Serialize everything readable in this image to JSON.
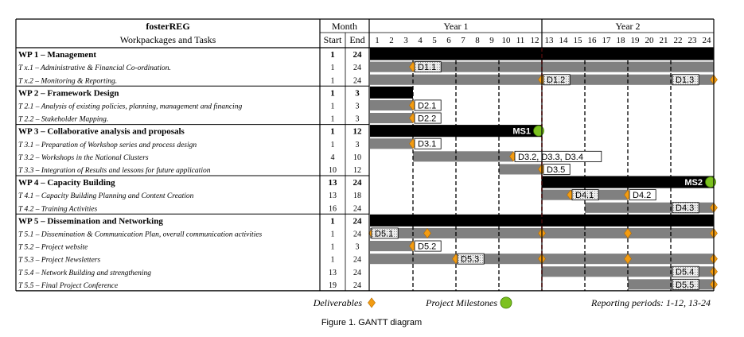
{
  "chart_data": {
    "type": "table",
    "header": {
      "project": "fosterREG",
      "subtitle": "Workpackages and Tasks",
      "month": "Month",
      "start": "Start",
      "end": "End",
      "year1": "Year 1",
      "year2": "Year 2",
      "months": [
        "1",
        "2",
        "3",
        "4",
        "5",
        "6",
        "7",
        "8",
        "9",
        "10",
        "11",
        "12",
        "13",
        "14",
        "15",
        "16",
        "17",
        "18",
        "19",
        "20",
        "21",
        "22",
        "23",
        "24"
      ]
    },
    "rows": [
      {
        "label": "WP 1 – Management",
        "start": "1",
        "end": "24",
        "wp": true
      },
      {
        "label": "T x.1 – Administrative & Financial Co-ordination.",
        "start": "1",
        "end": "24",
        "wp": false
      },
      {
        "label": "T x.2 – Monitoring & Reporting.",
        "start": "1",
        "end": "24",
        "wp": false
      },
      {
        "label": "WP 2 – Framework Design",
        "start": "1",
        "end": "3",
        "wp": true
      },
      {
        "label": "T 2.1 – Analysis of existing policies, planning, management and financing",
        "start": "1",
        "end": "3",
        "wp": false
      },
      {
        "label": "T 2.2 – Stakeholder Mapping.",
        "start": "1",
        "end": "3",
        "wp": false
      },
      {
        "label": "WP 3 – Collaborative analysis and proposals",
        "start": "1",
        "end": "12",
        "wp": true
      },
      {
        "label": "T 3.1 – Preparation of Workshop series and process design",
        "start": "1",
        "end": "3",
        "wp": false
      },
      {
        "label": "T 3.2 – Workshops in the National Clusters",
        "start": "4",
        "end": "10",
        "wp": false
      },
      {
        "label": "T 3.3 – Integration of Results and lessons for future application",
        "start": "10",
        "end": "12",
        "wp": false
      },
      {
        "label": "WP 4 – Capacity Building",
        "start": "13",
        "end": "24",
        "wp": true
      },
      {
        "label": "T 4.1 – Capacity Building Planning and Content Creation",
        "start": "13",
        "end": "18",
        "wp": false
      },
      {
        "label": "T 4.2 – Training Activities",
        "start": "16",
        "end": "24",
        "wp": false
      },
      {
        "label": "WP 5 – Dissemination and Networking",
        "start": "1",
        "end": "24",
        "wp": true
      },
      {
        "label": "T 5.1 – Dissemination & Communication Plan, overall communication activities",
        "start": "1",
        "end": "24",
        "wp": false
      },
      {
        "label": "T 5.2 – Project website",
        "start": "1",
        "end": "3",
        "wp": false
      },
      {
        "label": "T 5.3 – Project Newsletters",
        "start": "1",
        "end": "24",
        "wp": false
      },
      {
        "label": "T 5.4 – Network Building and strengthening",
        "start": "13",
        "end": "24",
        "wp": false
      },
      {
        "label": "T 5.5 – Final Project Conference",
        "start": "19",
        "end": "24",
        "wp": false
      }
    ],
    "bars": [
      {
        "row": 0,
        "from": 1,
        "to": 24,
        "fill": "black"
      },
      {
        "row": 1,
        "from": 1,
        "to": 24,
        "fill": "gray"
      },
      {
        "row": 2,
        "from": 1,
        "to": 24,
        "fill": "gray"
      },
      {
        "row": 3,
        "from": 1,
        "to": 3,
        "fill": "black"
      },
      {
        "row": 4,
        "from": 1,
        "to": 3,
        "fill": "gray"
      },
      {
        "row": 5,
        "from": 1,
        "to": 3,
        "fill": "gray"
      },
      {
        "row": 6,
        "from": 1,
        "to": 12,
        "fill": "black"
      },
      {
        "row": 7,
        "from": 1,
        "to": 3,
        "fill": "gray"
      },
      {
        "row": 8,
        "from": 4,
        "to": 10,
        "fill": "gray"
      },
      {
        "row": 9,
        "from": 10,
        "to": 12,
        "fill": "gray"
      },
      {
        "row": 10,
        "from": 13,
        "to": 24,
        "fill": "black"
      },
      {
        "row": 11,
        "from": 13,
        "to": 18,
        "fill": "gray"
      },
      {
        "row": 12,
        "from": 16,
        "to": 24,
        "fill": "gray"
      },
      {
        "row": 13,
        "from": 1,
        "to": 24,
        "fill": "black"
      },
      {
        "row": 14,
        "from": 1,
        "to": 24,
        "fill": "gray"
      },
      {
        "row": 15,
        "from": 1,
        "to": 3,
        "fill": "gray"
      },
      {
        "row": 16,
        "from": 1,
        "to": 24,
        "fill": "gray"
      },
      {
        "row": 17,
        "from": 13,
        "to": 24,
        "fill": "gray"
      },
      {
        "row": 18,
        "from": 19,
        "to": 24,
        "fill": "gray"
      }
    ],
    "deliverable_markers": [
      {
        "row": 1,
        "month": 3
      },
      {
        "row": 2,
        "month": 12
      },
      {
        "row": 2,
        "month": 24
      },
      {
        "row": 4,
        "month": 3
      },
      {
        "row": 5,
        "month": 3
      },
      {
        "row": 7,
        "month": 3
      },
      {
        "row": 8,
        "month": 10
      },
      {
        "row": 9,
        "month": 12
      },
      {
        "row": 11,
        "month": 14
      },
      {
        "row": 11,
        "month": 18
      },
      {
        "row": 12,
        "month": 24
      },
      {
        "row": 14,
        "month": 1
      },
      {
        "row": 14,
        "month": 4
      },
      {
        "row": 14,
        "month": 12
      },
      {
        "row": 14,
        "month": 18
      },
      {
        "row": 14,
        "month": 24
      },
      {
        "row": 15,
        "month": 3
      },
      {
        "row": 16,
        "month": 6
      },
      {
        "row": 16,
        "month": 12
      },
      {
        "row": 16,
        "month": 18
      },
      {
        "row": 16,
        "month": 24
      },
      {
        "row": 17,
        "month": 24
      },
      {
        "row": 18,
        "month": 24
      }
    ],
    "deliverable_labels": [
      {
        "row": 1,
        "month": 4,
        "text": "D1.1",
        "style": "hatched"
      },
      {
        "row": 2,
        "month": 13,
        "text": "D1.2",
        "style": "hatched"
      },
      {
        "row": 2,
        "month": 22,
        "text": "D1.3",
        "style": "hatched"
      },
      {
        "row": 4,
        "month": 4,
        "text": "D2.1",
        "style": "plain"
      },
      {
        "row": 5,
        "month": 4,
        "text": "D2.2",
        "style": "plain"
      },
      {
        "row": 7,
        "month": 4,
        "text": "D3.1",
        "style": "plain"
      },
      {
        "row": 8,
        "month": 11,
        "text": "D3.2, D3.3, D3.4",
        "style": "plain"
      },
      {
        "row": 9,
        "month": 13,
        "text": "D3.5",
        "style": "plain"
      },
      {
        "row": 11,
        "month": 15,
        "text": "D4.1",
        "style": "hatched"
      },
      {
        "row": 11,
        "month": 19,
        "text": "D4.2",
        "style": "plain"
      },
      {
        "row": 12,
        "month": 22,
        "text": "D4.3",
        "style": "hatched"
      },
      {
        "row": 14,
        "month": 1,
        "text": "D5.1",
        "style": "hatched"
      },
      {
        "row": 15,
        "month": 4,
        "text": "D5.2",
        "style": "plain"
      },
      {
        "row": 16,
        "month": 7,
        "text": "D5.3",
        "style": "hatched"
      },
      {
        "row": 17,
        "month": 22,
        "text": "D5.4",
        "style": "hatched"
      },
      {
        "row": 18,
        "month": 22,
        "text": "D5.5",
        "style": "hatched"
      }
    ],
    "milestones": [
      {
        "row": 6,
        "month": 12,
        "text": "MS1"
      },
      {
        "row": 10,
        "month": 24,
        "text": "MS2"
      }
    ],
    "reporting_period_boundary_month": 12,
    "legend": {
      "deliverables": "Deliverables",
      "milestones": "Project Milestones",
      "reporting": "Reporting periods: 1-12, 13-24"
    },
    "caption": "Figure 1. GANTT diagram",
    "colors": {
      "bar_black": "#000000",
      "bar_gray": "#808080",
      "deliverable": "#f39c12",
      "milestone": "#7cc11f",
      "reporting_line": "#e02020",
      "label_bg": "#e2e2e2"
    }
  }
}
